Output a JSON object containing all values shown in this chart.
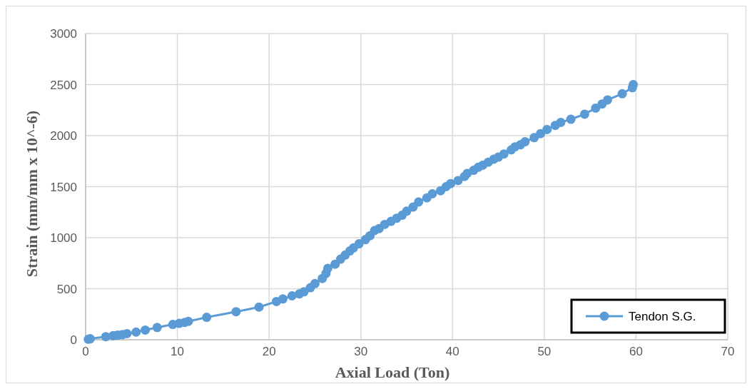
{
  "chart_data": {
    "type": "line",
    "xlabel": "Axial Load (Ton)",
    "ylabel": "Strain (mm/mm x 10^-6)",
    "xlim": [
      0,
      70
    ],
    "xticks": [
      0,
      10,
      20,
      30,
      40,
      50,
      60,
      70
    ],
    "ylim": [
      0,
      3000
    ],
    "yticks": [
      0,
      500,
      1000,
      1500,
      2000,
      2500,
      3000
    ],
    "grid": true,
    "legend": "bottom right",
    "marker": "circle",
    "line_style": "solid",
    "series": [
      {
        "name": "Tendon S.G.",
        "color": "#5b9bd5",
        "x": [
          0.3,
          0.5,
          2.2,
          3,
          3.5,
          4,
          4.5,
          5.5,
          6.5,
          7.8,
          9.5,
          10.2,
          10.8,
          11.2,
          13.2,
          16.4,
          18.9,
          20.8,
          21.5,
          22.5,
          23.3,
          23.8,
          24.5,
          25,
          25.8,
          26.2,
          26.4,
          27.2,
          27.8,
          28.3,
          28.8,
          29.2,
          29.8,
          30.5,
          31,
          31.5,
          32,
          32.6,
          33.3,
          33.9,
          34.5,
          35,
          35.7,
          36.3,
          37.2,
          37.8,
          38.7,
          39.3,
          39.8,
          40.6,
          41.3,
          41.6,
          42.3,
          42.8,
          43.3,
          43.9,
          44.5,
          45,
          45.6,
          46.4,
          46.8,
          47.4,
          47.9,
          48.9,
          49.6,
          50.3,
          51.2,
          51.8,
          52.9,
          54.4,
          55.6,
          56.3,
          56.9,
          58.5,
          59.6,
          59.7
        ],
        "values": [
          5,
          10,
          30,
          40,
          45,
          50,
          60,
          75,
          95,
          120,
          150,
          160,
          170,
          180,
          220,
          275,
          320,
          375,
          400,
          430,
          450,
          470,
          510,
          550,
          600,
          650,
          700,
          740,
          790,
          830,
          870,
          900,
          940,
          980,
          1020,
          1070,
          1090,
          1130,
          1160,
          1190,
          1220,
          1260,
          1300,
          1350,
          1390,
          1430,
          1460,
          1500,
          1530,
          1560,
          1600,
          1630,
          1660,
          1690,
          1710,
          1740,
          1770,
          1790,
          1820,
          1860,
          1890,
          1910,
          1940,
          1980,
          2020,
          2060,
          2100,
          2130,
          2160,
          2210,
          2270,
          2310,
          2350,
          2410,
          2470,
          2500
        ]
      }
    ]
  }
}
